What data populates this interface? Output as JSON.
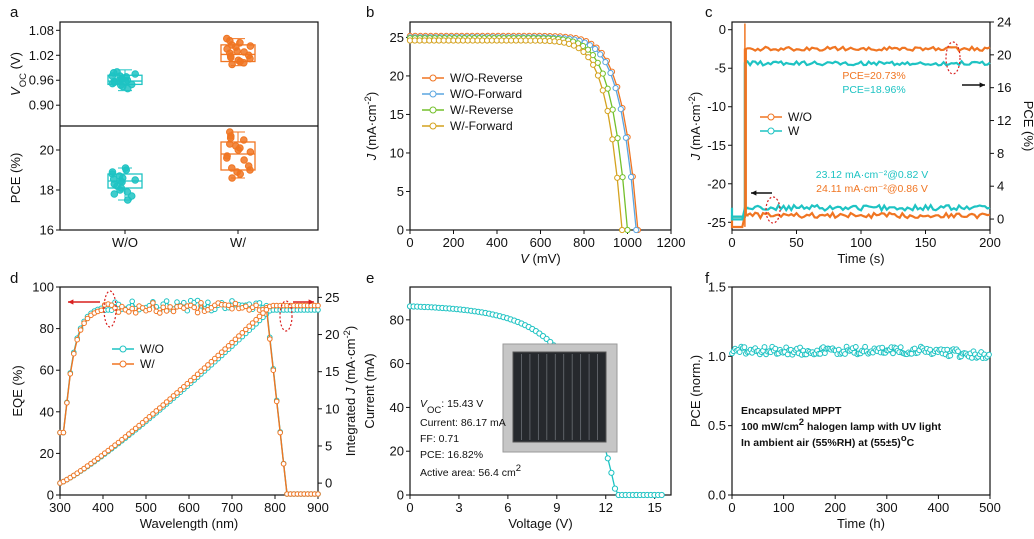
{
  "colors": {
    "wo": "#1ec3c3",
    "w": "#f07522",
    "wf": "#5ba6e0",
    "wrev": "#74c02b",
    "wfor": "#d4a21e",
    "frame": "#111111",
    "arrow_red": "#d9201f",
    "arrow_black": "#111111"
  },
  "chart_data": [
    {
      "panel": "a",
      "type": "box",
      "categories": [
        "W/O",
        "W/"
      ],
      "top": {
        "ylabel": "V_OC (V)",
        "ylim": [
          0.85,
          1.1
        ],
        "yticks": [
          "0.90",
          "0.96",
          "1.02",
          "1.08"
        ],
        "ytick_values": [
          0.9,
          0.96,
          1.02,
          1.08
        ],
        "boxes": [
          {
            "category": "W/O",
            "min": 0.935,
            "q1": 0.95,
            "median": 0.958,
            "q3": 0.972,
            "max": 0.985
          },
          {
            "category": "W/",
            "min": 0.995,
            "q1": 1.005,
            "median": 1.022,
            "q3": 1.045,
            "max": 1.06
          }
        ],
        "points": [
          [
            0.94,
            0.95,
            0.96,
            0.97,
            0.98,
            0.955,
            0.965,
            0.975,
            0.945,
            0.96,
            0.97,
            0.952,
            0.968,
            0.958,
            0.962,
            0.948,
            0.978,
            0.957
          ],
          [
            0.998,
            1.005,
            1.012,
            1.02,
            1.028,
            1.035,
            1.042,
            1.05,
            1.055,
            1.002,
            1.015,
            1.025,
            1.045,
            1.06,
            1.008,
            1.018,
            1.03,
            1.04
          ]
        ]
      },
      "bottom": {
        "ylabel": "PCE (%)",
        "ylim": [
          16,
          21.2
        ],
        "yticks": [
          "16",
          "18",
          "20"
        ],
        "ytick_values": [
          16,
          18,
          20
        ],
        "boxes": [
          {
            "category": "W/O",
            "min": 17.5,
            "q1": 18.1,
            "median": 18.45,
            "q3": 18.8,
            "max": 19.1
          },
          {
            "category": "W/",
            "min": 18.6,
            "q1": 19.0,
            "median": 19.8,
            "q3": 20.4,
            "max": 20.9
          }
        ],
        "points": [
          [
            17.5,
            17.7,
            17.9,
            18.0,
            18.2,
            18.3,
            18.4,
            18.5,
            18.6,
            18.7,
            18.8,
            18.9,
            19.0,
            19.1,
            18.1,
            18.45,
            18.55,
            17.8
          ],
          [
            18.6,
            18.8,
            19.0,
            19.2,
            19.5,
            19.7,
            19.9,
            20.1,
            20.3,
            20.5,
            20.7,
            20.9,
            19.1,
            19.6,
            20.0,
            20.6,
            18.9,
            20.2
          ]
        ]
      }
    },
    {
      "panel": "b",
      "type": "line",
      "xlabel": "V (mV)",
      "ylabel": "J (mA·cm⁻²)",
      "xlim": [
        0,
        1200
      ],
      "ylim": [
        0,
        27
      ],
      "xticks": [
        "0",
        "200",
        "400",
        "600",
        "800",
        "1000",
        "1200"
      ],
      "xtick_values": [
        0,
        200,
        400,
        600,
        800,
        1000,
        1200
      ],
      "yticks": [
        "0",
        "5",
        "10",
        "15",
        "20",
        "25"
      ],
      "ytick_values": [
        0,
        5,
        10,
        15,
        20,
        25
      ],
      "series": [
        {
          "name": "W/O-Reverse",
          "jsc": 25.2,
          "voc": 1048,
          "n": 44
        },
        {
          "name": "W/O-Forward",
          "jsc": 25.0,
          "voc": 1040,
          "n": 44
        },
        {
          "name": "W/-Reverse",
          "jsc": 24.9,
          "voc": 1000,
          "n": 44
        },
        {
          "name": "W/-Forward",
          "jsc": 24.6,
          "voc": 975,
          "n": 44
        }
      ]
    },
    {
      "panel": "c",
      "type": "line",
      "xlabel": "Time (s)",
      "ylabel": "J (mA·cm⁻²)",
      "y2label": "PCE (%)",
      "xlim": [
        0,
        200
      ],
      "ylim": [
        -26,
        1
      ],
      "y2lim": [
        -1.3333,
        24
      ],
      "xticks": [
        "0",
        "50",
        "100",
        "150",
        "200"
      ],
      "xtick_values": [
        0,
        50,
        100,
        150,
        200
      ],
      "yticks": [
        "0",
        "-5",
        "-10",
        "-15",
        "-20",
        "-25"
      ],
      "ytick_values": [
        0,
        -5,
        -10,
        -15,
        -20,
        -25
      ],
      "y2ticks": [
        "0",
        "4",
        "8",
        "12",
        "16",
        "20",
        "24"
      ],
      "y2tick_values": [
        0,
        4,
        8,
        12,
        16,
        20,
        24
      ],
      "series": [
        {
          "name": "W/O",
          "J": -24.11,
          "PCE": 20.73
        },
        {
          "name": "W",
          "J": -23.12,
          "PCE": 18.96
        }
      ],
      "annotations": [
        "PCE=20.73%",
        "PCE=18.96%",
        "23.12 mA·cm⁻²@0.82 V",
        "24.11 mA·cm⁻²@0.86 V"
      ]
    },
    {
      "panel": "d",
      "type": "line",
      "xlabel": "Wavelength (nm)",
      "ylabel": "EQE (%)",
      "y2label": "Integrated J (mA·cm⁻²)",
      "xlim": [
        300,
        900
      ],
      "ylim": [
        0,
        100
      ],
      "y2lim": [
        -1.6,
        26.4
      ],
      "xticks": [
        "300",
        "400",
        "500",
        "600",
        "700",
        "800",
        "900"
      ],
      "xtick_values": [
        300,
        400,
        500,
        600,
        700,
        800,
        900
      ],
      "yticks": [
        "0",
        "20",
        "40",
        "60",
        "80",
        "100"
      ],
      "ytick_values": [
        0,
        20,
        40,
        60,
        80,
        100
      ],
      "y2ticks": [
        "0",
        "5",
        "10",
        "15",
        "20",
        "25"
      ],
      "y2tick_values": [
        0,
        5,
        10,
        15,
        20,
        25
      ],
      "series": [
        {
          "name": "W/O",
          "eqe_plateau": 91,
          "integrated_final": 23.3
        },
        {
          "name": "W/",
          "eqe_plateau": 90,
          "integrated_final": 23.9
        }
      ]
    },
    {
      "panel": "e",
      "type": "line",
      "xlabel": "Voltage (V)",
      "ylabel": "Current (mA)",
      "xlim": [
        0,
        16
      ],
      "ylim": [
        0,
        95
      ],
      "xticks": [
        "0",
        "3",
        "6",
        "9",
        "12",
        "15"
      ],
      "xtick_values": [
        0,
        3,
        6,
        9,
        12,
        15
      ],
      "yticks": [
        "0",
        "20",
        "40",
        "60",
        "80"
      ],
      "ytick_values": [
        0,
        20,
        40,
        60,
        80
      ],
      "series": [
        {
          "name": "module",
          "isc": 86.17,
          "voc": 15.43
        }
      ],
      "annotations": {
        "voc": "V_OC: 15.43 V",
        "current": "Current: 86.17 mA",
        "ff": "FF: 0.71",
        "pce": "PCE: 16.82%",
        "area": "Active area: 56.4 cm²"
      }
    },
    {
      "panel": "f",
      "type": "line",
      "xlabel": "Time (h)",
      "ylabel": "PCE (norm.)",
      "xlim": [
        0,
        500
      ],
      "ylim": [
        0,
        1.5
      ],
      "xticks": [
        "0",
        "100",
        "200",
        "300",
        "400",
        "500"
      ],
      "xtick_values": [
        0,
        100,
        200,
        300,
        400,
        500
      ],
      "yticks": [
        "0.0",
        "0.5",
        "1.0",
        "1.5"
      ],
      "ytick_values": [
        0,
        0.5,
        1.0,
        1.5
      ],
      "series": [
        {
          "name": "MPPT",
          "start": 1.04,
          "end": 1.0
        }
      ],
      "annotations": [
        "Encapsulated MPPT",
        "100 mW/cm² halogen lamp with UV light",
        "In ambient air (55%RH) at (55±5)°C"
      ]
    }
  ],
  "panel_letters": [
    "a",
    "b",
    "c",
    "d",
    "e",
    "f"
  ],
  "labels": {
    "a_xcat_wo": "W/O",
    "a_xcat_w": "W/",
    "b_x": "V (mV)",
    "b_y": "J (mA·cm⁻²)",
    "b_leg1": "W/O-Reverse",
    "b_leg2": "W/O-Forward",
    "b_leg3": "W/-Reverse",
    "b_leg4": "W/-Forward",
    "c_x": "Time (s)",
    "c_y": "J (mA·cm⁻²)",
    "c_y2": "PCE (%)",
    "c_leg1": "W/O",
    "c_leg2": "W",
    "c_ann1": "PCE=20.73%",
    "c_ann2": "PCE=18.96%",
    "c_ann3": "23.12 mA·cm⁻²@0.82 V",
    "c_ann4": "24.11 mA·cm⁻²@0.86 V",
    "d_x": "Wavelength (nm)",
    "d_y": "EQE (%)",
    "d_y2": "Integrated J (mA·cm⁻²)",
    "d_leg1": "W/O",
    "d_leg2": "W/",
    "e_x": "Voltage (V)",
    "e_y": "Current (mA)",
    "e_voc": "V_OC: 15.43 V",
    "e_cur": "Current: 86.17 mA",
    "e_ff": "FF: 0.71",
    "e_pce": "PCE: 16.82%",
    "e_area": "Active area: 56.4 cm²",
    "f_x": "Time (h)",
    "f_y": "PCE (norm.)",
    "f_ann1": "Encapsulated MPPT",
    "f_ann2": "100 mW/cm² halogen lamp with UV light",
    "f_ann3": "In ambient air (55%RH) at (55±5)°C"
  }
}
